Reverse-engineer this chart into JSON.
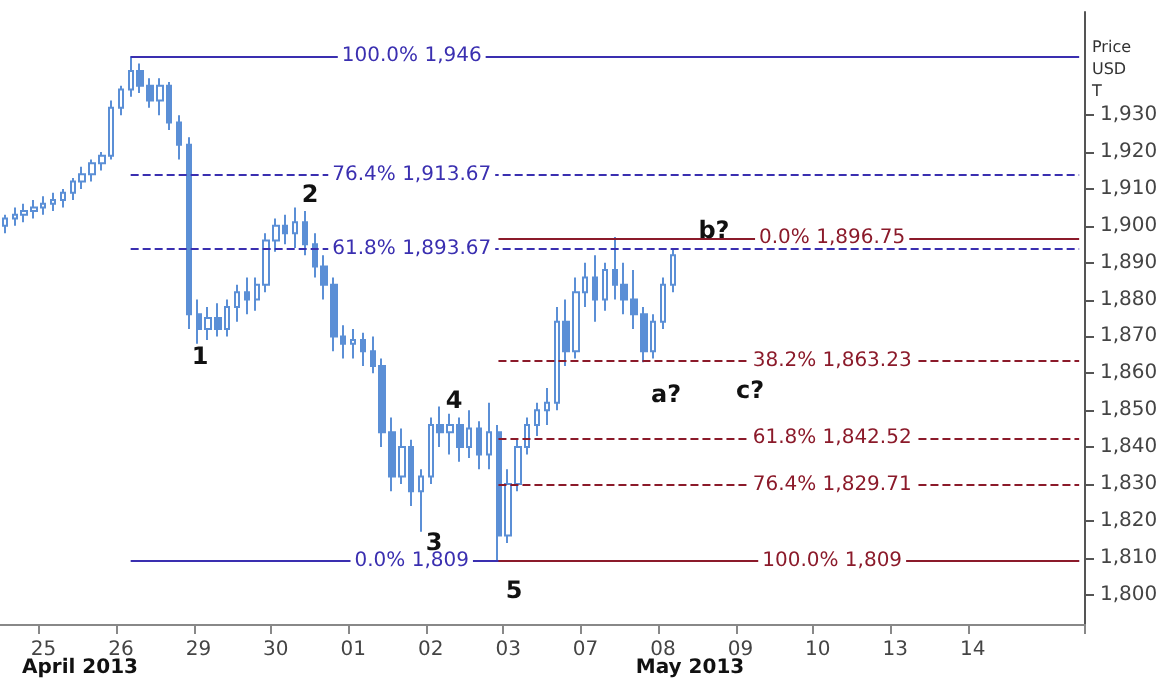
{
  "chart_data": {
    "type": "candlestick",
    "ylabel": "Price USD T",
    "color": "#5b8fd6",
    "categories": [
      null,
      null,
      null,
      null,
      "25",
      null,
      null,
      null,
      null,
      null,
      null,
      null,
      "26",
      null,
      null,
      null,
      null,
      null,
      null,
      null,
      "29",
      null,
      null,
      null,
      null,
      null,
      null,
      null,
      "30",
      null,
      null,
      null,
      null,
      null,
      null,
      null,
      "01",
      null,
      null,
      null,
      null,
      null,
      null,
      null,
      "02",
      null,
      null,
      null,
      null,
      null,
      null,
      null,
      "03",
      null,
      null,
      null,
      null,
      null,
      null,
      null,
      "07",
      null,
      null,
      null,
      null,
      null,
      null,
      null,
      "08",
      null,
      null,
      null,
      null,
      null,
      null,
      null,
      "09",
      null,
      null,
      null,
      null,
      null,
      null,
      null,
      "10",
      null,
      null,
      null,
      null,
      null,
      null,
      null,
      "13",
      null,
      null,
      null,
      null,
      null,
      null,
      null,
      "14",
      null,
      null,
      null,
      null,
      null,
      null,
      null,
      null,
      null,
      null,
      null
    ],
    "ohlc": [
      [
        1900,
        1903,
        1898,
        1902
      ],
      [
        1902,
        1905,
        1900,
        1903
      ],
      [
        1903,
        1906,
        1901,
        1904
      ],
      [
        1904,
        1907,
        1902,
        1905
      ],
      [
        1905,
        1908,
        1903,
        1906
      ],
      [
        1906,
        1909,
        1904,
        1907
      ],
      [
        1907,
        1910,
        1905,
        1909
      ],
      [
        1909,
        1913,
        1907,
        1912
      ],
      [
        1912,
        1916,
        1910,
        1914
      ],
      [
        1914,
        1918,
        1912,
        1917
      ],
      [
        1917,
        1920,
        1915,
        1919
      ],
      [
        1919,
        1934,
        1918,
        1932
      ],
      [
        1932,
        1938,
        1930,
        1937
      ],
      [
        1937,
        1946,
        1935,
        1942
      ],
      [
        1942,
        1944,
        1936,
        1938
      ],
      [
        1938,
        1940,
        1932,
        1934
      ],
      [
        1934,
        1940,
        1930,
        1938
      ],
      [
        1938,
        1939,
        1926,
        1928
      ],
      [
        1928,
        1930,
        1918,
        1922
      ],
      [
        1922,
        1924,
        1872,
        1876
      ],
      [
        1876,
        1880,
        1868,
        1872
      ],
      [
        1872,
        1878,
        1869,
        1875
      ],
      [
        1875,
        1879,
        1870,
        1872
      ],
      [
        1872,
        1880,
        1870,
        1878
      ],
      [
        1878,
        1884,
        1874,
        1882
      ],
      [
        1882,
        1886,
        1876,
        1880
      ],
      [
        1880,
        1886,
        1877,
        1884
      ],
      [
        1884,
        1898,
        1882,
        1896
      ],
      [
        1896,
        1902,
        1893,
        1900
      ],
      [
        1900,
        1903,
        1895,
        1898
      ],
      [
        1898,
        1905,
        1894,
        1901
      ],
      [
        1901,
        1904,
        1892,
        1895
      ],
      [
        1895,
        1898,
        1886,
        1889
      ],
      [
        1889,
        1892,
        1880,
        1884
      ],
      [
        1884,
        1886,
        1866,
        1870
      ],
      [
        1870,
        1873,
        1864,
        1868
      ],
      [
        1868,
        1872,
        1864,
        1869
      ],
      [
        1869,
        1871,
        1862,
        1866
      ],
      [
        1866,
        1870,
        1860,
        1862
      ],
      [
        1862,
        1864,
        1840,
        1844
      ],
      [
        1844,
        1848,
        1828,
        1832
      ],
      [
        1832,
        1845,
        1830,
        1840
      ],
      [
        1840,
        1842,
        1824,
        1828
      ],
      [
        1828,
        1834,
        1817,
        1832
      ],
      [
        1832,
        1848,
        1830,
        1846
      ],
      [
        1846,
        1851,
        1840,
        1844
      ],
      [
        1844,
        1849,
        1838,
        1846
      ],
      [
        1846,
        1848,
        1836,
        1840
      ],
      [
        1840,
        1850,
        1837,
        1845
      ],
      [
        1845,
        1847,
        1834,
        1838
      ],
      [
        1838,
        1852,
        1834,
        1844
      ],
      [
        1844,
        1846,
        1809,
        1816
      ],
      [
        1816,
        1834,
        1814,
        1830
      ],
      [
        1830,
        1842,
        1828,
        1840
      ],
      [
        1840,
        1848,
        1838,
        1846
      ],
      [
        1846,
        1852,
        1843,
        1850
      ],
      [
        1850,
        1856,
        1846,
        1852
      ],
      [
        1852,
        1878,
        1850,
        1874
      ],
      [
        1874,
        1880,
        1862,
        1866
      ],
      [
        1866,
        1886,
        1864,
        1882
      ],
      [
        1882,
        1890,
        1878,
        1886
      ],
      [
        1886,
        1892,
        1874,
        1880
      ],
      [
        1880,
        1890,
        1877,
        1888
      ],
      [
        1888,
        1897,
        1880,
        1884
      ],
      [
        1884,
        1890,
        1876,
        1880
      ],
      [
        1880,
        1888,
        1872,
        1876
      ],
      [
        1876,
        1878,
        1863,
        1866
      ],
      [
        1866,
        1876,
        1864,
        1874
      ],
      [
        1874,
        1886,
        1872,
        1884
      ],
      [
        1884,
        1894,
        1882,
        1892
      ],
      null,
      null,
      null,
      null,
      null,
      null,
      null,
      null,
      null,
      null,
      null,
      null,
      null,
      null,
      null,
      null,
      null,
      null,
      null,
      null,
      null,
      null,
      null,
      null,
      null,
      null,
      null,
      null,
      null,
      null,
      null,
      null,
      null,
      null,
      null,
      null,
      null,
      null,
      null,
      null,
      null,
      null
    ],
    "ylim": [
      1792,
      1958
    ],
    "yticks": [
      {
        "value": 1800,
        "label": "1,800"
      },
      {
        "value": 1810,
        "label": "1,810"
      },
      {
        "value": 1820,
        "label": "1,820"
      },
      {
        "value": 1830,
        "label": "1,830"
      },
      {
        "value": 1840,
        "label": "1,840"
      },
      {
        "value": 1850,
        "label": "1,850"
      },
      {
        "value": 1860,
        "label": "1,860"
      },
      {
        "value": 1870,
        "label": "1,870"
      },
      {
        "value": 1880,
        "label": "1,880"
      },
      {
        "value": 1890,
        "label": "1,890"
      },
      {
        "value": 1900,
        "label": "1,900"
      },
      {
        "value": 1910,
        "label": "1,910"
      },
      {
        "value": 1920,
        "label": "1,920"
      },
      {
        "value": 1930,
        "label": "1,930"
      }
    ],
    "ref_lines": [
      {
        "axis": "y",
        "value": 1946,
        "label": "100.0% 1,946",
        "color": "#3a2fb0",
        "line_style": "solid"
      },
      {
        "axis": "y",
        "value": 1913.67,
        "label": "76.4% 1,913.67",
        "color": "#3a2fb0",
        "line_style": "dashed"
      },
      {
        "axis": "y",
        "value": 1893.67,
        "label": "61.8% 1,893.67",
        "color": "#3a2fb0",
        "line_style": "dashed"
      },
      {
        "axis": "y",
        "value": 1809,
        "label": "0.0% 1,809",
        "color": "#3a2fb0",
        "line_style": "solid"
      },
      {
        "axis": "y",
        "value": 1896.75,
        "label": "0.0% 1,896.75",
        "color": "#8b1a2a",
        "line_style": "solid"
      },
      {
        "axis": "y",
        "value": 1863.23,
        "label": "38.2% 1,863.23",
        "color": "#8b1a2a",
        "line_style": "dashed"
      },
      {
        "axis": "y",
        "value": 1842.52,
        "label": "61.8% 1,842.52",
        "color": "#8b1a2a",
        "line_style": "dashed"
      },
      {
        "axis": "y",
        "value": 1829.71,
        "label": "76.4% 1,829.71",
        "color": "#8b1a2a",
        "line_style": "dashed"
      },
      {
        "axis": "y",
        "value": 1809,
        "label": "100.0% 1,809",
        "color": "#8b1a2a",
        "line_style": "solid"
      }
    ],
    "annotations": [
      "1",
      "2",
      "3",
      "4",
      "5",
      "a?",
      "b?",
      "c?",
      "April 2013",
      "May 2013"
    ]
  }
}
